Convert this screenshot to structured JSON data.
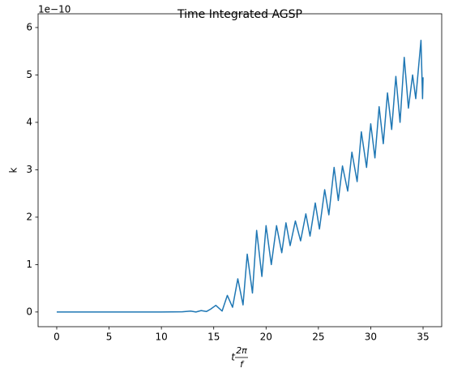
{
  "chart_data": {
    "type": "line",
    "title": "Time Integrated AGSP",
    "xlabel": {
      "base": "t",
      "numerator": "2π",
      "denominator": "f"
    },
    "ylabel": "k",
    "offset_text": "1e−10",
    "xlim": [
      -1.78,
      36.78
    ],
    "ylim": [
      -0.31,
      6.29
    ],
    "xticks": [
      0,
      5,
      10,
      15,
      20,
      25,
      30,
      35
    ],
    "yticks": [
      0,
      1,
      2,
      3,
      4,
      5,
      6
    ],
    "series": [
      {
        "name": "k",
        "color": "#1f77b4",
        "x": [
          0,
          10,
          12,
          12.8,
          13.3,
          13.8,
          14.3,
          14.7,
          15.2,
          15.8,
          16.3,
          16.8,
          17.3,
          17.8,
          18.2,
          18.7,
          19.1,
          19.6,
          20.0,
          20.5,
          21.0,
          21.5,
          21.9,
          22.3,
          22.8,
          23.3,
          23.8,
          24.2,
          24.7,
          25.1,
          25.6,
          26.0,
          26.5,
          26.9,
          27.3,
          27.8,
          28.2,
          28.7,
          29.1,
          29.6,
          30.0,
          30.4,
          30.8,
          31.2,
          31.6,
          32.0,
          32.4,
          32.8,
          33.2,
          33.6,
          34.0,
          34.3,
          34.8,
          34.95,
          35.0
        ],
        "values": [
          0,
          0,
          0.005,
          0.02,
          0.0,
          0.03,
          0.01,
          0.06,
          0.14,
          0.02,
          0.35,
          0.1,
          0.7,
          0.15,
          1.22,
          0.4,
          1.72,
          0.75,
          1.82,
          1.0,
          1.82,
          1.25,
          1.88,
          1.4,
          1.92,
          1.5,
          2.07,
          1.6,
          2.3,
          1.75,
          2.58,
          2.05,
          3.05,
          2.35,
          3.08,
          2.55,
          3.37,
          2.75,
          3.8,
          3.05,
          3.97,
          3.25,
          4.33,
          3.55,
          4.62,
          3.85,
          4.97,
          4.0,
          5.37,
          4.3,
          5.0,
          4.5,
          5.73,
          4.5,
          4.95
        ]
      }
    ]
  }
}
